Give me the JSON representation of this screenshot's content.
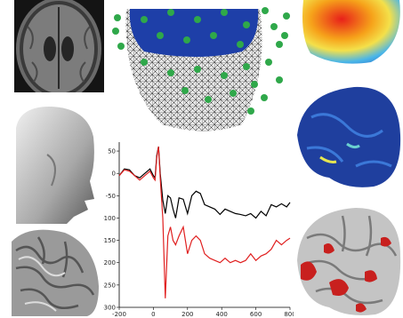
{
  "figure": {
    "panels": [
      {
        "name": "mri-slice",
        "description": "axial T1 MRI slice"
      },
      {
        "name": "electrode-mesh",
        "description": "head mesh with sensor positions"
      },
      {
        "name": "topography-map",
        "description": "scalp topography"
      },
      {
        "name": "head-surface",
        "description": "scalp surface render"
      },
      {
        "name": "brain-blue",
        "description": "cortical surface blue"
      },
      {
        "name": "cortex-surface",
        "description": "cortical surface gray"
      },
      {
        "name": "brain-red",
        "description": "cortex with red activations"
      }
    ],
    "colors": {
      "mesh_blue": "#1e3fa8",
      "sensor_green": "#2fa84a",
      "activation_red": "#c8201e",
      "trace_black": "#000000",
      "trace_red": "#e02020"
    }
  },
  "chart_data": {
    "type": "line",
    "x_ticks": [
      "-200",
      "0",
      "200",
      "400",
      "600",
      "800"
    ],
    "y_ticks": [
      "50",
      "0",
      "-50",
      "-100",
      "-150",
      "-200",
      "-250",
      "-300"
    ],
    "xlim": [
      -200,
      800
    ],
    "ylim": [
      -300,
      70
    ],
    "series": [
      {
        "color": "#000000",
        "x": [
          -200,
          -170,
          -140,
          -110,
          -80,
          -50,
          -20,
          0,
          10,
          20,
          30,
          40,
          55,
          70,
          85,
          100,
          115,
          130,
          150,
          175,
          200,
          225,
          250,
          275,
          300,
          330,
          360,
          390,
          420,
          450,
          480,
          510,
          540,
          570,
          600,
          630,
          660,
          690,
          720,
          750,
          780,
          800
        ],
        "y": [
          -5,
          10,
          8,
          -5,
          -10,
          0,
          10,
          -5,
          -10,
          40,
          60,
          0,
          -60,
          -90,
          -50,
          -55,
          -80,
          -100,
          -55,
          -58,
          -90,
          -50,
          -40,
          -45,
          -70,
          -75,
          -80,
          -92,
          -80,
          -85,
          -90,
          -92,
          -95,
          -90,
          -100,
          -85,
          -95,
          -70,
          -75,
          -68,
          -75,
          -65
        ]
      },
      {
        "color": "#e02020",
        "x": [
          -200,
          -170,
          -140,
          -110,
          -80,
          -50,
          -20,
          0,
          10,
          20,
          30,
          40,
          55,
          70,
          85,
          100,
          115,
          130,
          150,
          175,
          200,
          225,
          250,
          275,
          300,
          330,
          360,
          390,
          420,
          450,
          480,
          510,
          540,
          570,
          600,
          630,
          660,
          690,
          720,
          750,
          780,
          800
        ],
        "y": [
          -5,
          8,
          5,
          -5,
          -15,
          -5,
          5,
          -10,
          -15,
          35,
          60,
          -10,
          -100,
          -280,
          -140,
          -120,
          -150,
          -160,
          -140,
          -120,
          -180,
          -150,
          -140,
          -150,
          -180,
          -190,
          -195,
          -200,
          -190,
          -200,
          -195,
          -200,
          -195,
          -180,
          -195,
          -185,
          -180,
          -170,
          -150,
          -160,
          -150,
          -145
        ]
      }
    ]
  }
}
